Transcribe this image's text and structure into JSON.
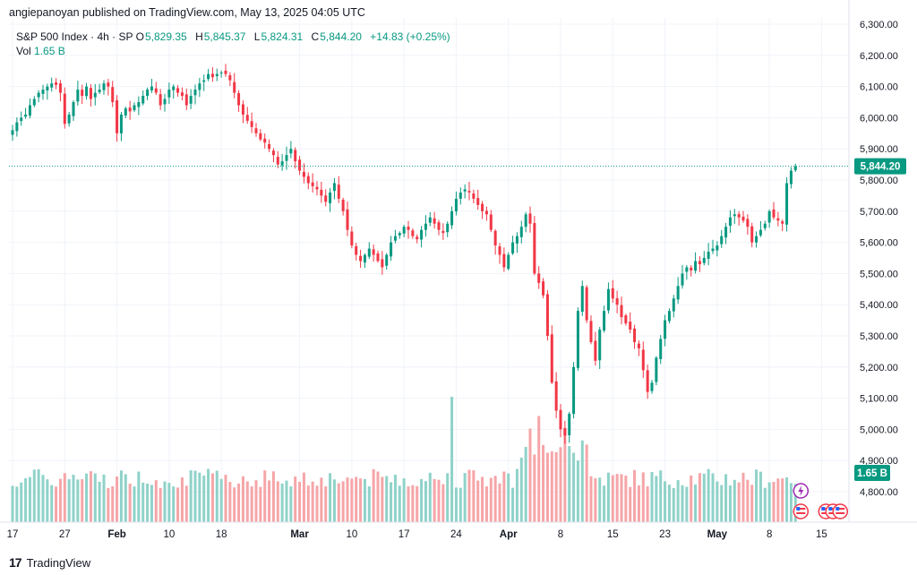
{
  "header": {
    "publisher": "angiepanoyan published on TradingView.com, May 13, 2025 04:05 UTC"
  },
  "legend": {
    "symbol": "S&P 500 Index · 4h · SP",
    "open_label": "O",
    "open": "5,829.35",
    "high_label": "H",
    "high": "5,845.37",
    "low_label": "L",
    "low": "5,824.31",
    "close_label": "C",
    "close": "5,844.20",
    "change": "+14.83 (+0.25%)",
    "vol_label": "Vol",
    "vol": "1.65 B"
  },
  "footer": {
    "brand": "TradingView"
  },
  "colors": {
    "up": "#089981",
    "down": "#f23645",
    "up_vol": "#8fd2c9",
    "down_vol": "#f6a5a8"
  },
  "chart_data": {
    "type": "candlestick",
    "y_ticks": [
      "6,300.00",
      "6,200.00",
      "6,100.00",
      "6,000.00",
      "5,900.00",
      "5,800.00",
      "5,700.00",
      "5,600.00",
      "5,500.00",
      "5,400.00",
      "5,300.00",
      "5,200.00",
      "5,100.00",
      "5,000.00",
      "4,900.00",
      "4,800.00"
    ],
    "y_tick_values": [
      6300,
      6200,
      6100,
      6000,
      5900,
      5800,
      5700,
      5600,
      5500,
      5400,
      5300,
      5200,
      5100,
      5000,
      4900,
      4800
    ],
    "ylim": [
      4800,
      6300
    ],
    "x_tick_labels": [
      "17",
      "27",
      "Feb",
      "10",
      "18",
      "Mar",
      "10",
      "17",
      "24",
      "Apr",
      "8",
      "15",
      "23",
      "May",
      "8",
      "15"
    ],
    "x_tick_index": [
      0,
      12,
      24,
      36,
      48,
      66,
      78,
      90,
      102,
      114,
      126,
      138,
      150,
      162,
      174,
      186
    ],
    "last_price": "5,844.20",
    "last_price_value": 5844.2,
    "volume_label": "1.65 B",
    "close_series": [
      5960,
      5985,
      6000,
      6010,
      6040,
      6060,
      6080,
      6090,
      6100,
      6110,
      6105,
      6080,
      5980,
      6010,
      6050,
      6090,
      6070,
      6100,
      6060,
      6080,
      6090,
      6110,
      6100,
      6050,
      5950,
      6010,
      6030,
      6020,
      6040,
      6050,
      6070,
      6090,
      6100,
      6080,
      6040,
      6060,
      6090,
      6100,
      6080,
      6070,
      6040,
      6070,
      6090,
      6110,
      6120,
      6140,
      6130,
      6140,
      6145,
      6140,
      6120,
      6080,
      6040,
      6010,
      5990,
      5970,
      5950,
      5930,
      5920,
      5900,
      5880,
      5850,
      5860,
      5880,
      5900,
      5860,
      5830,
      5810,
      5790,
      5780,
      5770,
      5750,
      5730,
      5760,
      5790,
      5740,
      5700,
      5640,
      5590,
      5560,
      5540,
      5560,
      5580,
      5560,
      5540,
      5520,
      5560,
      5600,
      5620,
      5630,
      5650,
      5640,
      5620,
      5610,
      5640,
      5660,
      5680,
      5660,
      5640,
      5630,
      5660,
      5700,
      5740,
      5760,
      5770,
      5760,
      5740,
      5720,
      5700,
      5690,
      5640,
      5590,
      5560,
      5520,
      5560,
      5600,
      5620,
      5650,
      5690,
      5660,
      5500,
      5470,
      5430,
      5300,
      5150,
      5060,
      5000,
      4980,
      5050,
      5200,
      5380,
      5460,
      5350,
      5280,
      5220,
      5320,
      5380,
      5450,
      5420,
      5400,
      5360,
      5340,
      5320,
      5280,
      5260,
      5190,
      5120,
      5150,
      5230,
      5290,
      5350,
      5380,
      5420,
      5460,
      5500,
      5520,
      5510,
      5540,
      5530,
      5550,
      5570,
      5580,
      5590,
      5620,
      5650,
      5680,
      5690,
      5680,
      5670,
      5650,
      5600,
      5620,
      5640,
      5660,
      5700,
      5680,
      5670,
      5660,
      5790,
      5830,
      5844
    ]
  }
}
